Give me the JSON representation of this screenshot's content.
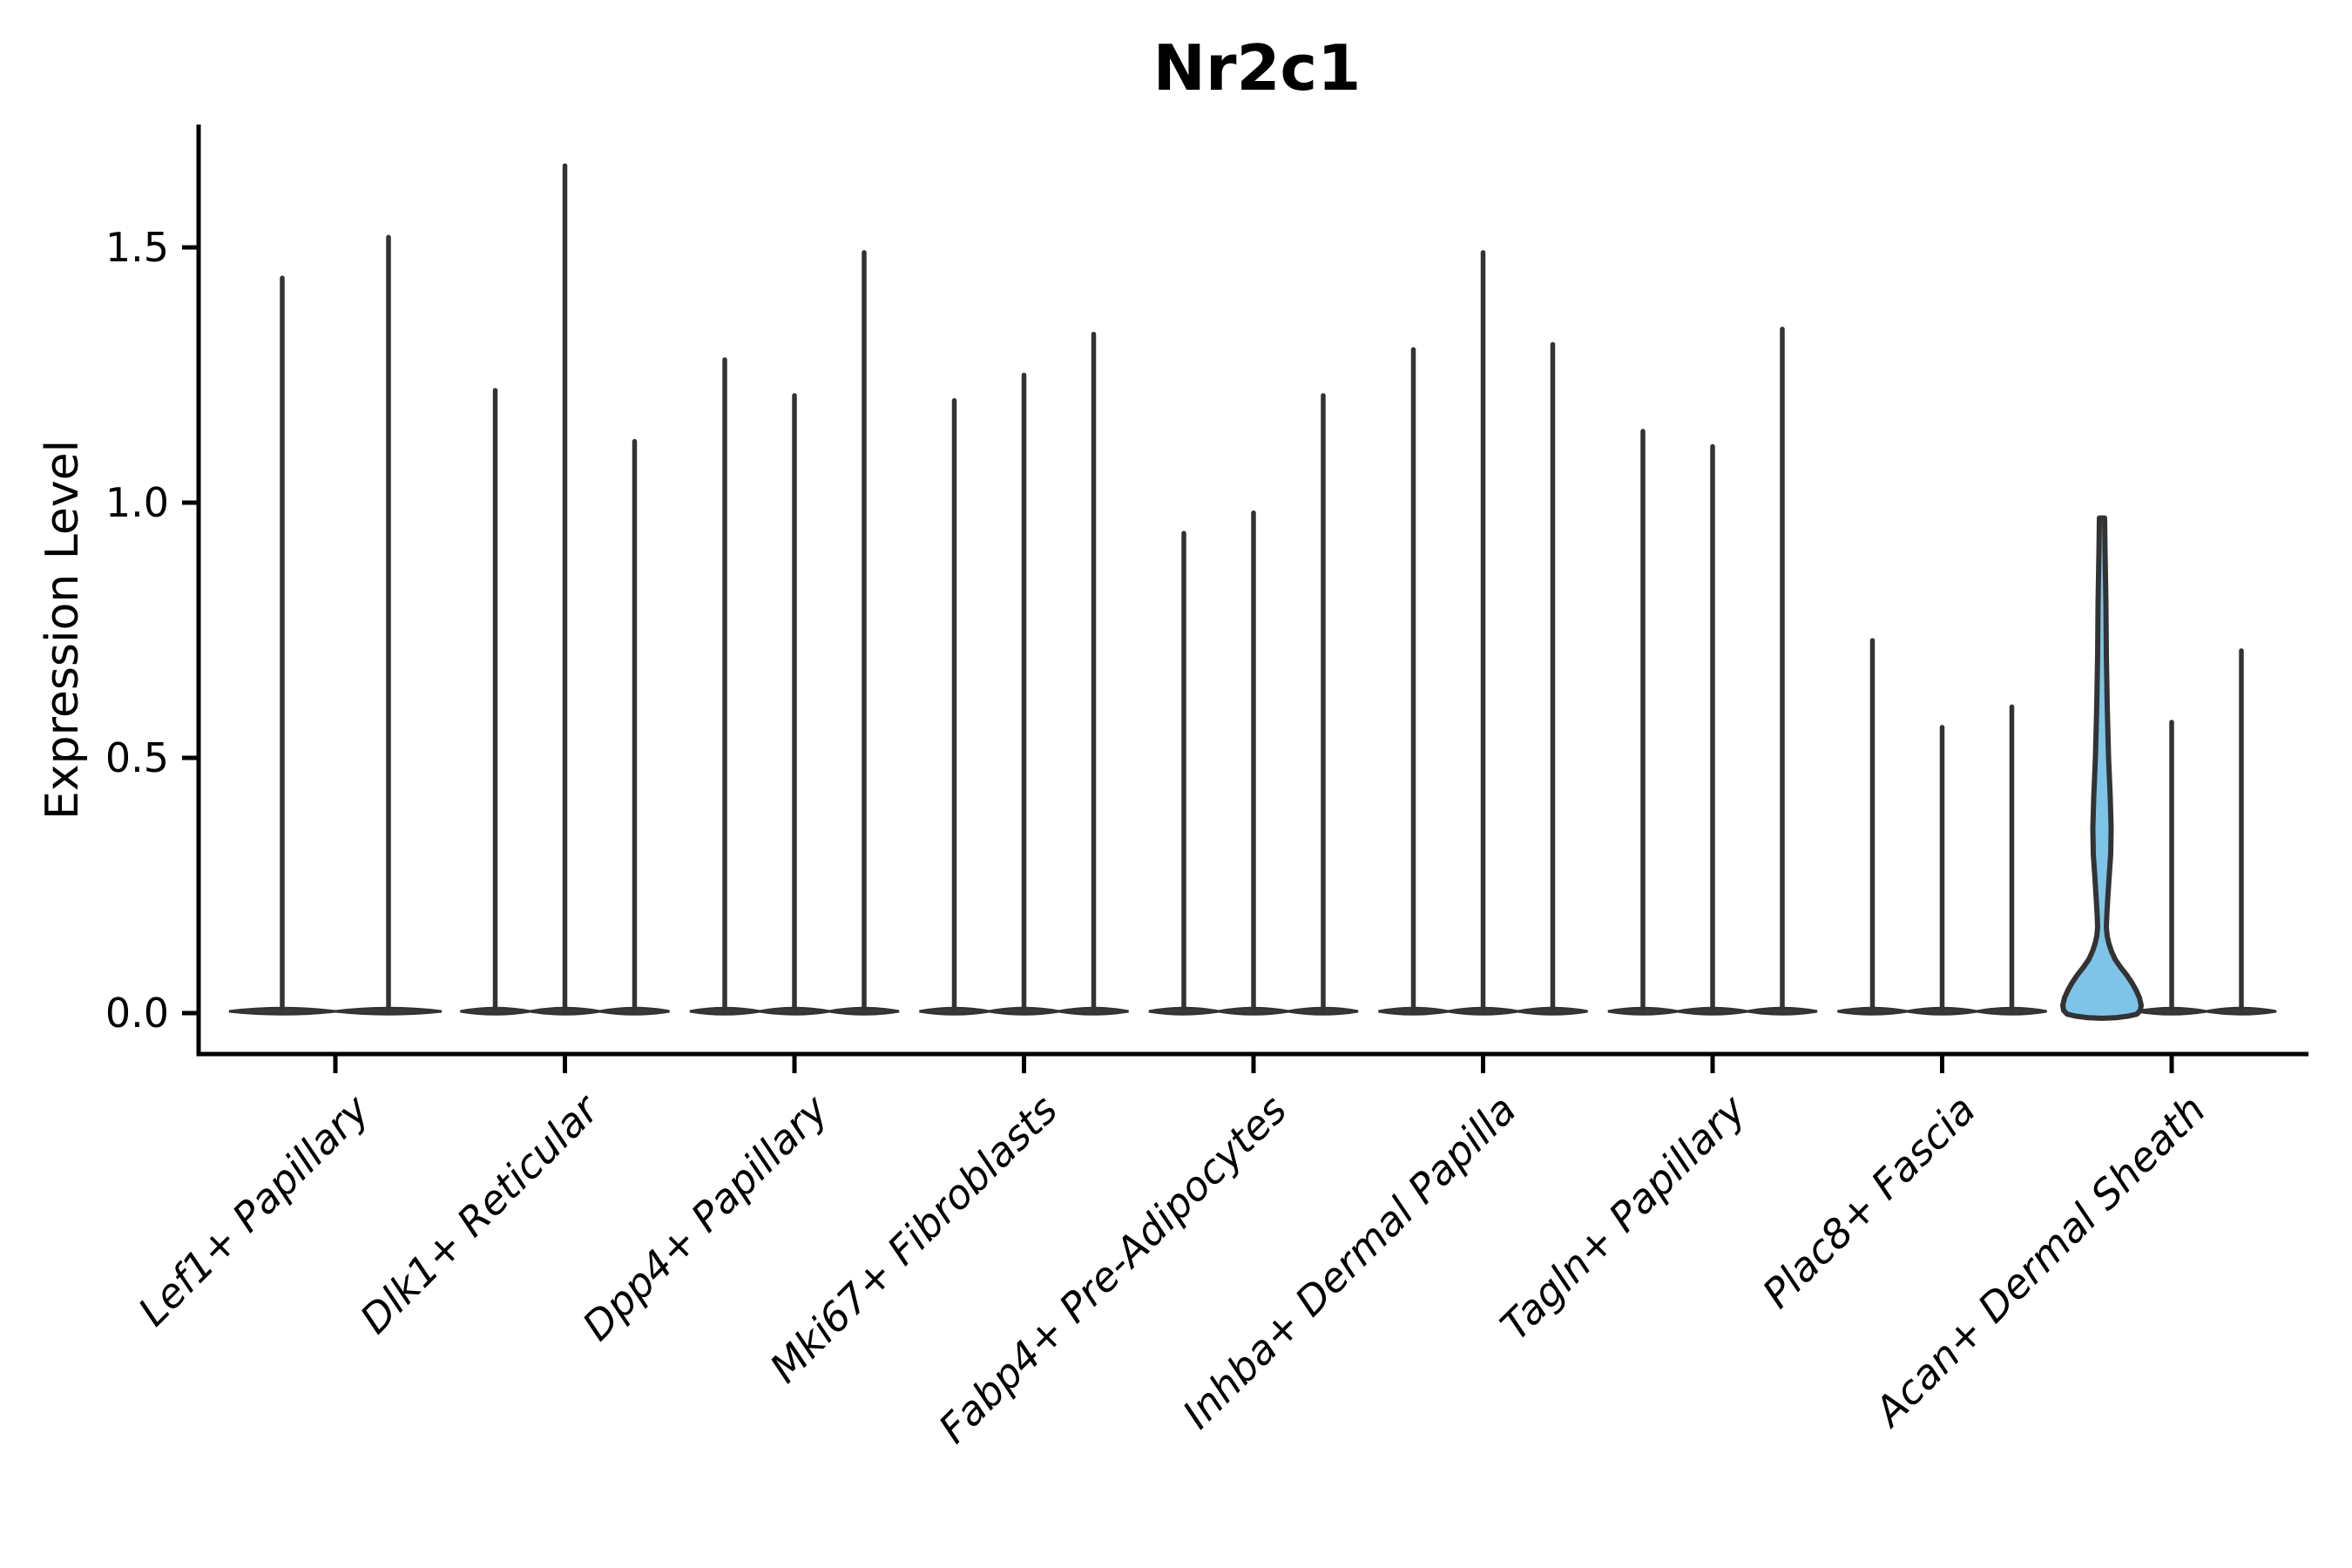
{
  "title": "Nr2c1",
  "ylabel": "Expression Level",
  "chart_data": {
    "type": "violin",
    "title": "Nr2c1",
    "xlabel": "",
    "ylabel": "Expression Level",
    "ytick_labels": [
      "0.0",
      "0.5",
      "1.0",
      "1.5"
    ],
    "ytick_values": [
      0.0,
      0.5,
      1.0,
      1.5
    ],
    "ylim": [
      -0.09,
      1.74
    ],
    "grid": false,
    "legend": "none",
    "categories": [
      "Lef1+ Papillary",
      "Dlk1+ Reticular",
      "Dpp4+ Papillary",
      "Mki67+ Fibroblasts",
      "Fabp4+ Pre-Adipocytes",
      "Inhba+ Dermal Papilla",
      "Tagln+ Papillary",
      "Plac8+ Fascia",
      "Acan+ Dermal Sheath"
    ],
    "groups": [
      {
        "category": "Lef1+ Papillary",
        "violin_maxima": [
          1.44,
          1.52
        ],
        "highlighted_violin": null
      },
      {
        "category": "Dlk1+ Reticular",
        "violin_maxima": [
          1.22,
          1.66,
          1.12
        ],
        "highlighted_violin": null
      },
      {
        "category": "Dpp4+ Papillary",
        "violin_maxima": [
          1.28,
          1.21,
          1.49
        ],
        "highlighted_violin": null
      },
      {
        "category": "Mki67+ Fibroblasts",
        "violin_maxima": [
          1.2,
          1.25,
          1.33
        ],
        "highlighted_violin": null
      },
      {
        "category": "Fabp4+ Pre-Adipocytes",
        "violin_maxima": [
          0.94,
          0.98,
          1.21
        ],
        "highlighted_violin": null
      },
      {
        "category": "Inhba+ Dermal Papilla",
        "violin_maxima": [
          1.3,
          1.49,
          1.31
        ],
        "highlighted_violin": null
      },
      {
        "category": "Tagln+ Papillary",
        "violin_maxima": [
          1.14,
          1.11,
          1.34
        ],
        "highlighted_violin": null
      },
      {
        "category": "Plac8+ Fascia",
        "violin_maxima": [
          0.73,
          0.56,
          0.6
        ],
        "highlighted_violin": null
      },
      {
        "category": "Acan+ Dermal Sheath",
        "violin_maxima": [
          0.97,
          0.57,
          0.71
        ],
        "highlighted_violin": 0
      }
    ],
    "colors": {
      "highlight_fill": "#7EC4E8",
      "violin_outline": "#333333",
      "violin_base_fill": "#3a3a3a",
      "axis": "#000000",
      "background": "#ffffff"
    }
  }
}
